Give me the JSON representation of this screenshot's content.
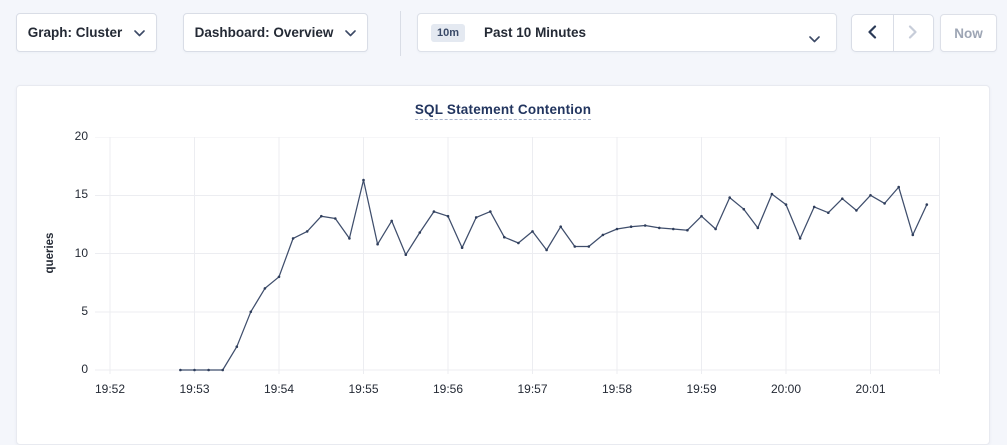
{
  "toolbar": {
    "graph_selector_label": "Graph: Cluster",
    "dashboard_selector_label": "Dashboard: Overview",
    "time_window_badge": "10m",
    "time_window_label": "Past 10 Minutes",
    "now_button_label": "Now"
  },
  "colors": {
    "page_bg": "#f4f6fb",
    "panel_bg": "#ffffff",
    "title": "#22355f",
    "text_dark": "#242a35",
    "border": "#d9dde6",
    "grid": "#ecedf1",
    "line": "#3f4e6c",
    "line_dot": "#2f3e5c",
    "disabled": "#c7cdd9",
    "enabled_arrow": "#2b3a57"
  },
  "chart_data": {
    "type": "line",
    "title": "SQL Statement Contention",
    "xlabel": "",
    "ylabel": "queries",
    "ylim": [
      0,
      20
    ],
    "y_ticks": [
      0,
      5,
      10,
      15,
      20
    ],
    "x_tick_labels": [
      "19:52",
      "19:53",
      "19:54",
      "19:55",
      "19:56",
      "19:57",
      "19:58",
      "19:59",
      "20:00",
      "20:01"
    ],
    "grid": true,
    "legend_position": "none",
    "series": [
      {
        "name": "queries",
        "start_time": "19:52:50",
        "interval_seconds": 10,
        "values": [
          0,
          0,
          0,
          0,
          2,
          5,
          7,
          8,
          11.3,
          11.9,
          13.2,
          13,
          11.3,
          16.3,
          10.8,
          12.8,
          9.9,
          11.8,
          13.6,
          13.2,
          10.5,
          13.1,
          13.6,
          11.4,
          10.9,
          11.9,
          10.3,
          12.3,
          10.6,
          10.6,
          11.6,
          12.1,
          12.3,
          12.4,
          12.2,
          12.1,
          12,
          13.2,
          12.1,
          14.8,
          13.8,
          12.2,
          15.1,
          14.2,
          11.3,
          14,
          13.5,
          14.7,
          13.7,
          15,
          14.3,
          15.7,
          11.6,
          14.2
        ]
      }
    ]
  }
}
